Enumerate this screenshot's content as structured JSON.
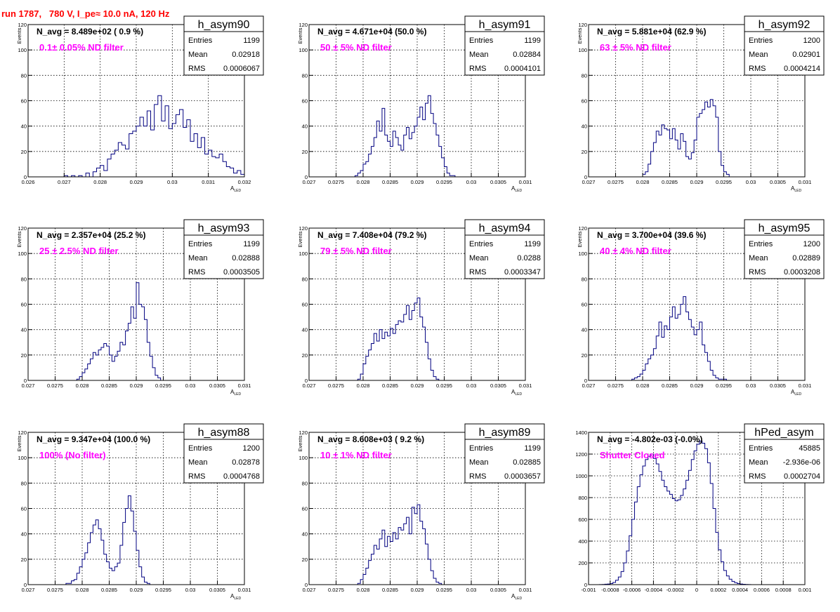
{
  "page": {
    "title": "run 1787,   780 V, I_pe≈ 10.0 nA, 120 Hz"
  },
  "stats_labels": {
    "entries": "Entries",
    "mean": "Mean",
    "rms": "RMS"
  },
  "chart_data": [
    {
      "type": "bar",
      "name": "h_asym90",
      "navg": "N_avg = 8.489e+02 ( 0.9 %)",
      "filter": "0.1± 0.05% ND filter",
      "entries": "1199",
      "mean": "0.02918",
      "rms": "0.0006067",
      "xlabel": "A",
      "xlabel_sub": "LED",
      "ylabel": "Events",
      "xlim": [
        0.026,
        0.032
      ],
      "ylim": [
        0,
        120
      ],
      "xticks": [
        0.026,
        0.027,
        0.028,
        0.029,
        0.03,
        0.031,
        0.032
      ],
      "xtick_labels": [
        "0.026",
        "0.027",
        "0.028",
        "0.029",
        "0.03",
        "0.031",
        "0.032"
      ],
      "yticks": [
        0,
        20,
        40,
        60,
        80,
        100,
        120
      ],
      "ytick_labels": [
        "0",
        "20",
        "40",
        "60",
        "80",
        "100",
        "120"
      ],
      "bin_start": 0.0264,
      "bin_width": 0.0001,
      "values": [
        0,
        0,
        0,
        0,
        0,
        0,
        1,
        0,
        1,
        0,
        1,
        0,
        3,
        0,
        4,
        7,
        9,
        5,
        14,
        18,
        21,
        27,
        25,
        22,
        34,
        36,
        40,
        47,
        40,
        52,
        37,
        57,
        64,
        44,
        56,
        38,
        42,
        49,
        53,
        39,
        45,
        28,
        34,
        23,
        31,
        18,
        21,
        16,
        15,
        18,
        12,
        8,
        7,
        3,
        5,
        2,
        1,
        1,
        1,
        0,
        0,
        0,
        0,
        0
      ]
    },
    {
      "type": "bar",
      "name": "h_asym91",
      "navg": "N_avg = 4.671e+04 (50.0 %)",
      "filter": "50 ± 5% ND filter",
      "entries": "1199",
      "mean": "0.02884",
      "rms": "0.0004101",
      "xlabel": "A",
      "xlabel_sub": "LED",
      "ylabel": "Events",
      "xlim": [
        0.027,
        0.031
      ],
      "ylim": [
        0,
        120
      ],
      "xticks": [
        0.027,
        0.0275,
        0.028,
        0.0285,
        0.029,
        0.0295,
        0.03,
        0.0305,
        0.031
      ],
      "xtick_labels": [
        "0.027",
        "0.0275",
        "0.028",
        "0.0285",
        "0.029",
        "0.0295",
        "0.03",
        "0.0305",
        "0.031"
      ],
      "yticks": [
        0,
        20,
        40,
        60,
        80,
        100,
        120
      ],
      "ytick_labels": [
        "0",
        "20",
        "40",
        "60",
        "80",
        "100",
        "120"
      ],
      "bin_start": 0.02785,
      "bin_width": 5e-05,
      "values": [
        1,
        3,
        5,
        10,
        12,
        18,
        24,
        31,
        44,
        36,
        54,
        33,
        28,
        24,
        36,
        31,
        25,
        21,
        33,
        39,
        30,
        35,
        40,
        47,
        55,
        45,
        58,
        64,
        50,
        42,
        33,
        24,
        15,
        8,
        3,
        1,
        1,
        0,
        0,
        0
      ]
    },
    {
      "type": "bar",
      "name": "h_asym92",
      "navg": "N_avg = 5.881e+04 (62.9 %)",
      "filter": "63 ± 5% ND filter",
      "entries": "1200",
      "mean": "0.02901",
      "rms": "0.0004214",
      "xlabel": "A",
      "xlabel_sub": "LED",
      "ylabel": "Events",
      "xlim": [
        0.027,
        0.031
      ],
      "ylim": [
        0,
        120
      ],
      "xticks": [
        0.027,
        0.0275,
        0.028,
        0.0285,
        0.029,
        0.0295,
        0.03,
        0.0305,
        0.031
      ],
      "xtick_labels": [
        "0.027",
        "0.0275",
        "0.028",
        "0.0285",
        "0.029",
        "0.0295",
        "0.03",
        "0.0305",
        "0.031"
      ],
      "yticks": [
        0,
        20,
        40,
        60,
        80,
        100,
        120
      ],
      "ytick_labels": [
        "0",
        "20",
        "40",
        "60",
        "80",
        "100",
        "120"
      ],
      "bin_start": 0.028,
      "bin_width": 5e-05,
      "values": [
        2,
        4,
        10,
        20,
        27,
        36,
        33,
        41,
        38,
        37,
        30,
        38,
        29,
        22,
        34,
        28,
        16,
        14,
        19,
        29,
        47,
        50,
        53,
        59,
        55,
        61,
        56,
        47,
        20,
        9,
        4,
        2,
        0,
        0
      ]
    },
    {
      "type": "bar",
      "name": "h_asym93",
      "navg": "N_avg = 2.357e+04 (25.2 %)",
      "filter": "25 ± 2.5% ND filter",
      "entries": "1199",
      "mean": "0.02888",
      "rms": "0.0003505",
      "xlabel": "A",
      "xlabel_sub": "LED",
      "ylabel": "Events",
      "xlim": [
        0.027,
        0.031
      ],
      "ylim": [
        0,
        120
      ],
      "xticks": [
        0.027,
        0.0275,
        0.028,
        0.0285,
        0.029,
        0.0295,
        0.03,
        0.0305,
        0.031
      ],
      "xtick_labels": [
        "0.027",
        "0.0275",
        "0.028",
        "0.0285",
        "0.029",
        "0.0295",
        "0.03",
        "0.0305",
        "0.031"
      ],
      "yticks": [
        0,
        20,
        40,
        60,
        80,
        100,
        120
      ],
      "ytick_labels": [
        "0",
        "20",
        "40",
        "60",
        "80",
        "100",
        "120"
      ],
      "bin_start": 0.0279,
      "bin_width": 5e-05,
      "values": [
        1,
        3,
        6,
        9,
        13,
        17,
        22,
        20,
        24,
        26,
        29,
        27,
        20,
        15,
        19,
        23,
        30,
        28,
        39,
        45,
        58,
        49,
        77,
        60,
        58,
        48,
        30,
        19,
        10,
        4,
        2,
        0,
        0,
        0,
        0
      ]
    },
    {
      "type": "bar",
      "name": "h_asym94",
      "navg": "N_avg = 7.408e+04 (79.2 %)",
      "filter": "79 ± 5% ND filter",
      "entries": "1199",
      "mean": "0.0288",
      "rms": "0.0003347",
      "xlabel": "A",
      "xlabel_sub": "LED",
      "ylabel": "Events",
      "xlim": [
        0.027,
        0.031
      ],
      "ylim": [
        0,
        120
      ],
      "xticks": [
        0.027,
        0.0275,
        0.028,
        0.0285,
        0.029,
        0.0295,
        0.03,
        0.0305,
        0.031
      ],
      "xtick_labels": [
        "0.027",
        "0.0275",
        "0.028",
        "0.0285",
        "0.029",
        "0.0295",
        "0.03",
        "0.0305",
        "0.031"
      ],
      "yticks": [
        0,
        20,
        40,
        60,
        80,
        100,
        120
      ],
      "ytick_labels": [
        "0",
        "20",
        "40",
        "60",
        "80",
        "100",
        "120"
      ],
      "bin_start": 0.0279,
      "bin_width": 5e-05,
      "values": [
        1,
        5,
        13,
        19,
        24,
        29,
        37,
        31,
        40,
        33,
        38,
        35,
        41,
        37,
        44,
        47,
        46,
        52,
        59,
        48,
        55,
        61,
        65,
        50,
        42,
        30,
        17,
        8,
        3,
        1,
        0,
        0,
        0
      ]
    },
    {
      "type": "bar",
      "name": "h_asym95",
      "navg": "N_avg = 3.700e+04 (39.6 %)",
      "filter": "40 ± 4% ND filter",
      "entries": "1200",
      "mean": "0.02889",
      "rms": "0.0003208",
      "xlabel": "A",
      "xlabel_sub": "LED",
      "ylabel": "Events",
      "xlim": [
        0.027,
        0.031
      ],
      "ylim": [
        0,
        120
      ],
      "xticks": [
        0.027,
        0.0275,
        0.028,
        0.0285,
        0.029,
        0.0295,
        0.03,
        0.0305,
        0.031
      ],
      "xtick_labels": [
        "0.027",
        "0.0275",
        "0.028",
        "0.0285",
        "0.029",
        "0.0295",
        "0.03",
        "0.0305",
        "0.031"
      ],
      "yticks": [
        0,
        20,
        40,
        60,
        80,
        100,
        120
      ],
      "ytick_labels": [
        "0",
        "20",
        "40",
        "60",
        "80",
        "100",
        "120"
      ],
      "bin_start": 0.0278,
      "bin_width": 5e-05,
      "values": [
        1,
        2,
        3,
        5,
        8,
        13,
        17,
        20,
        25,
        35,
        46,
        34,
        43,
        40,
        50,
        58,
        49,
        52,
        60,
        66,
        54,
        48,
        42,
        36,
        40,
        46,
        28,
        22,
        15,
        8,
        4,
        2,
        1,
        1,
        1,
        0,
        0,
        0
      ]
    },
    {
      "type": "bar",
      "name": "h_asym88",
      "navg": "N_avg = 9.347e+04 (100.0 %)",
      "filter": "100% (No filter)",
      "entries": "1200",
      "mean": "0.02878",
      "rms": "0.0004768",
      "xlabel": "A",
      "xlabel_sub": "LED",
      "ylabel": "Events",
      "xlim": [
        0.027,
        0.031
      ],
      "ylim": [
        0,
        120
      ],
      "xticks": [
        0.027,
        0.0275,
        0.028,
        0.0285,
        0.029,
        0.0295,
        0.03,
        0.0305,
        0.031
      ],
      "xtick_labels": [
        "0.027",
        "0.0275",
        "0.028",
        "0.0285",
        "0.029",
        "0.0295",
        "0.03",
        "0.0305",
        "0.031"
      ],
      "yticks": [
        0,
        20,
        40,
        60,
        80,
        100,
        120
      ],
      "ytick_labels": [
        "0",
        "20",
        "40",
        "60",
        "80",
        "100",
        "120"
      ],
      "bin_start": 0.0277,
      "bin_width": 5e-05,
      "values": [
        1,
        1,
        3,
        4,
        9,
        14,
        20,
        25,
        33,
        41,
        47,
        51,
        44,
        35,
        24,
        18,
        13,
        11,
        14,
        17,
        31,
        49,
        60,
        70,
        58,
        42,
        27,
        14,
        6,
        2,
        1,
        0,
        0,
        0
      ]
    },
    {
      "type": "bar",
      "name": "h_asym89",
      "navg": "N_avg = 8.608e+03 ( 9.2 %)",
      "filter": "10 ± 1% ND filter",
      "entries": "1199",
      "mean": "0.02885",
      "rms": "0.0003657",
      "xlabel": "A",
      "xlabel_sub": "LED",
      "ylabel": "Events",
      "xlim": [
        0.027,
        0.031
      ],
      "ylim": [
        0,
        120
      ],
      "xticks": [
        0.027,
        0.0275,
        0.028,
        0.0285,
        0.029,
        0.0295,
        0.03,
        0.0305,
        0.031
      ],
      "xtick_labels": [
        "0.027",
        "0.0275",
        "0.028",
        "0.0285",
        "0.029",
        "0.0295",
        "0.03",
        "0.0305",
        "0.031"
      ],
      "yticks": [
        0,
        20,
        40,
        60,
        80,
        100,
        120
      ],
      "ytick_labels": [
        "0",
        "20",
        "40",
        "60",
        "80",
        "100",
        "120"
      ],
      "bin_start": 0.0279,
      "bin_width": 5e-05,
      "values": [
        1,
        4,
        8,
        13,
        19,
        24,
        31,
        28,
        36,
        43,
        30,
        38,
        34,
        41,
        36,
        45,
        43,
        48,
        53,
        40,
        61,
        56,
        63,
        50,
        44,
        32,
        20,
        11,
        5,
        2,
        1,
        0,
        0,
        0
      ]
    },
    {
      "type": "bar",
      "name": "hPed_asym",
      "navg": "N_avg = -4.802e-03 (-0.0%)",
      "filter": "Shutter Closed",
      "entries": "45885",
      "mean": "-2.936e-06",
      "rms": "0.0002704",
      "xlabel": "",
      "xlabel_sub": "",
      "ylabel": "",
      "xlim": [
        -0.001,
        0.001
      ],
      "ylim": [
        0,
        1400
      ],
      "xticks": [
        -0.001,
        -0.0008,
        -0.0006,
        -0.0004,
        -0.0002,
        0,
        0.0002,
        0.0004,
        0.0006,
        0.0008,
        0.001
      ],
      "xtick_labels": [
        "-0.001",
        "-0.0008",
        "-0.0006",
        "-0.0004",
        "-0.0002",
        "0",
        "0.0002",
        "0.0004",
        "0.0006",
        "0.0008",
        "0.001"
      ],
      "yticks": [
        0,
        200,
        400,
        600,
        800,
        1000,
        1200,
        1400
      ],
      "ytick_labels": [
        "0",
        "200",
        "400",
        "600",
        "800",
        "1000",
        "1200",
        "1400"
      ],
      "bin_start": -0.0009,
      "bin_width": 2.5e-05,
      "values": [
        1,
        2,
        4,
        6,
        10,
        20,
        40,
        70,
        120,
        200,
        310,
        450,
        600,
        760,
        900,
        1010,
        1090,
        1150,
        1180,
        1200,
        1160,
        1110,
        1040,
        960,
        900,
        860,
        830,
        790,
        770,
        780,
        820,
        880,
        960,
        1050,
        1150,
        1230,
        1290,
        1320,
        1300,
        1250,
        1120,
        930,
        700,
        480,
        320,
        210,
        130,
        80,
        50,
        30,
        18,
        10,
        6,
        3,
        2,
        1,
        0,
        0,
        0,
        0,
        0,
        0,
        0,
        0,
        0,
        0,
        0,
        0,
        0,
        0,
        0,
        0,
        0,
        0,
        0,
        0,
        0,
        0,
        0,
        0
      ]
    }
  ]
}
